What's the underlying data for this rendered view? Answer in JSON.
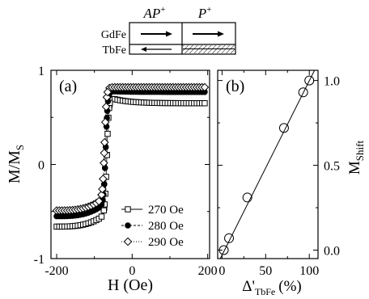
{
  "schematic": {
    "col1": "AP",
    "col1_sup": "+",
    "col2": "P",
    "col2_sup": "+",
    "row1": "GdFe",
    "row2": "TbFe"
  },
  "chart_data": [
    {
      "type": "scatter",
      "panel_label": "(a)",
      "xlabel": "H (Oe)",
      "ylabel": "M/M",
      "ylabel_sub": "S",
      "xlim": [
        -215,
        205
      ],
      "ylim": [
        -1,
        1
      ],
      "xticks": [
        -200,
        0,
        200
      ],
      "yticks": [
        -1,
        0,
        1
      ],
      "x_tick_labels": [
        "-200",
        "0",
        "200"
      ],
      "y_tick_labels": [
        "-1",
        "0",
        "1"
      ],
      "legend_position": "lower-right",
      "series": [
        {
          "name": "270 Oe",
          "marker": "square",
          "line": "solid",
          "lower_start": -0.66,
          "lower_near": -0.52,
          "upper_near": 0.72,
          "upper_end": 0.65,
          "switch_field": -67,
          "switch_width": 2.6
        },
        {
          "name": "280 Oe",
          "marker": "filled-circle",
          "line": "dashed",
          "lower_start": -0.55,
          "lower_near": -0.41,
          "upper_near": 0.78,
          "upper_end": 0.77,
          "switch_field": -70,
          "switch_width": 2.6
        },
        {
          "name": "290 Oe",
          "marker": "diamond",
          "line": "dotted",
          "lower_start": -0.49,
          "lower_near": -0.35,
          "upper_near": 0.82,
          "upper_end": 0.82,
          "switch_field": -73,
          "switch_width": 2.6
        }
      ]
    },
    {
      "type": "scatter",
      "panel_label": "(b)",
      "xlabel": "Δ'",
      "xlabel_sub": "TbFe",
      "xlabel_unit": "(%)",
      "ylabel": "M",
      "ylabel_sub": "Shift",
      "xlim": [
        -5,
        110
      ],
      "ylim": [
        -0.05,
        1.06
      ],
      "xticks": [
        0,
        50,
        100
      ],
      "yticks": [
        0.0,
        0.5,
        1.0
      ],
      "x_tick_labels": [
        "0",
        "50",
        "100"
      ],
      "y_tick_labels": [
        "0.0",
        "0.5",
        "1.0"
      ],
      "y_axis_side": "right",
      "points": [
        {
          "x": 2,
          "y": 0.0
        },
        {
          "x": 8,
          "y": 0.07
        },
        {
          "x": 29,
          "y": 0.31
        },
        {
          "x": 71,
          "y": 0.72
        },
        {
          "x": 93,
          "y": 0.93
        },
        {
          "x": 100,
          "y": 1.0
        }
      ],
      "fit_line": {
        "x": [
          -2,
          106
        ],
        "y": [
          -0.05,
          1.06
        ]
      }
    }
  ]
}
